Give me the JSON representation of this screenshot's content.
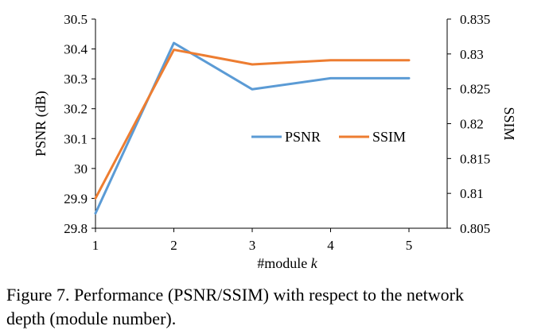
{
  "chart_data": {
    "type": "line",
    "categories": [
      "1",
      "2",
      "3",
      "4",
      "5"
    ],
    "xlabel_prefix": "#module ",
    "xlabel_var": "k",
    "ylabel_left": "PSNR (dB)",
    "ylabel_right": "SSIM",
    "ylim_left": [
      29.8,
      30.5
    ],
    "yticks_left": [
      "29.8",
      "29.9",
      "30",
      "30.1",
      "30.2",
      "30.3",
      "30.4",
      "30.5"
    ],
    "ylim_right": [
      0.805,
      0.835
    ],
    "yticks_right": [
      "0.805",
      "0.81",
      "0.815",
      "0.82",
      "0.825",
      "0.83",
      "0.835"
    ],
    "series": [
      {
        "name": "PSNR",
        "axis": "left",
        "color": "#5b9bd5",
        "values": [
          29.85,
          30.42,
          30.265,
          30.302,
          30.302
        ]
      },
      {
        "name": "SSIM",
        "axis": "right",
        "color": "#ed7d31",
        "values": [
          0.8093,
          0.8306,
          0.8285,
          0.8291,
          0.8291
        ]
      }
    ],
    "grid": false,
    "legend": "inside-right"
  },
  "caption": {
    "line1": "Figure 7. Performance (PSNR/SSIM) with respect to the network",
    "line2": "depth (module number)."
  }
}
